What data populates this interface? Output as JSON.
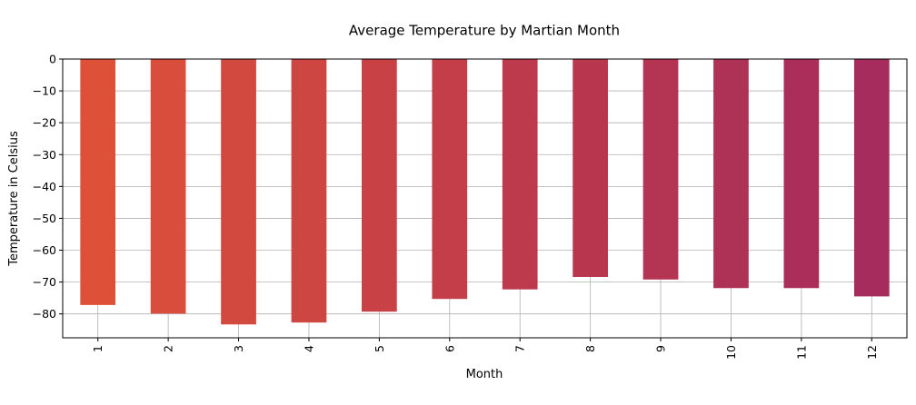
{
  "chart_data": {
    "type": "bar",
    "title": "Average Temperature by Martian Month",
    "xlabel": "Month",
    "ylabel": "Temperature in Celsius",
    "categories": [
      "1",
      "2",
      "3",
      "4",
      "5",
      "6",
      "7",
      "8",
      "9",
      "10",
      "11",
      "12"
    ],
    "values": [
      -77.2,
      -79.9,
      -83.3,
      -82.7,
      -79.3,
      -75.3,
      -72.3,
      -68.4,
      -69.2,
      -71.9,
      -71.9,
      -74.5
    ],
    "ylim": [
      -87.5,
      0
    ],
    "yticks": [
      0,
      -10,
      -20,
      -30,
      -40,
      -50,
      -60,
      -70,
      -80
    ],
    "ytick_labels": [
      "0",
      "−10",
      "−20",
      "−30",
      "−40",
      "−50",
      "−60",
      "−70",
      "−80"
    ],
    "grid": true,
    "bar_colors": [
      "#de5139",
      "#d84d3b",
      "#d2493f",
      "#cd4641",
      "#c84245",
      "#c33e48",
      "#bd3a4c",
      "#b8374f",
      "#b33453",
      "#ae3156",
      "#ab2e5a",
      "#a62c5d"
    ]
  }
}
